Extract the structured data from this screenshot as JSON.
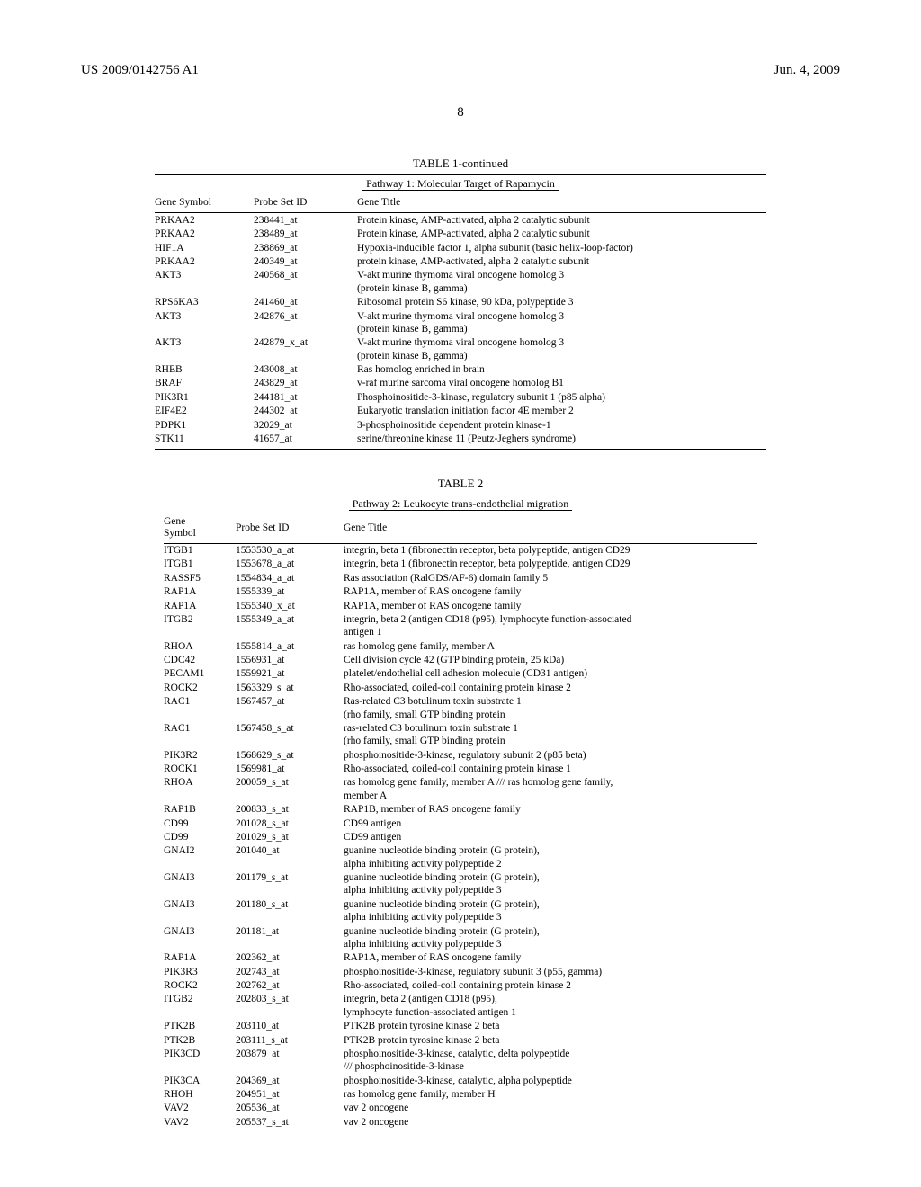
{
  "header": {
    "left": "US 2009/0142756 A1",
    "right": "Jun. 4, 2009"
  },
  "page_number": "8",
  "table1": {
    "caption": "TABLE 1-continued",
    "pathway": "Pathway 1: Molecular Target of Rapamycin",
    "columns": [
      "Gene Symbol",
      "Probe Set ID",
      "Gene Title"
    ],
    "rows": [
      [
        "PRKAA2",
        "238441_at",
        "Protein kinase, AMP-activated, alpha 2 catalytic subunit"
      ],
      [
        "PRKAA2",
        "238489_at",
        "Protein kinase, AMP-activated, alpha 2 catalytic subunit"
      ],
      [
        "HIF1A",
        "238869_at",
        "Hypoxia-inducible factor 1, alpha subunit (basic helix-loop-factor)"
      ],
      [
        "PRKAA2",
        "240349_at",
        "protein kinase, AMP-activated, alpha 2 catalytic subunit"
      ],
      [
        "AKT3",
        "240568_at",
        "V-akt murine thymoma viral oncogene homolog 3\n(protein kinase B, gamma)"
      ],
      [
        "RPS6KA3",
        "241460_at",
        "Ribosomal protein S6 kinase, 90 kDa, polypeptide 3"
      ],
      [
        "AKT3",
        "242876_at",
        "V-akt murine thymoma viral oncogene homolog 3\n(protein kinase B, gamma)"
      ],
      [
        "AKT3",
        "242879_x_at",
        "V-akt murine thymoma viral oncogene homolog 3\n(protein kinase B, gamma)"
      ],
      [
        "RHEB",
        "243008_at",
        "Ras homolog enriched in brain"
      ],
      [
        "BRAF",
        "243829_at",
        "v-raf murine sarcoma viral oncogene homolog B1"
      ],
      [
        "PIK3R1",
        "244181_at",
        "Phosphoinositide-3-kinase, regulatory subunit 1 (p85 alpha)"
      ],
      [
        "EIF4E2",
        "244302_at",
        "Eukaryotic translation initiation factor 4E member 2"
      ],
      [
        "PDPK1",
        "32029_at",
        "3-phosphoinositide dependent protein kinase-1"
      ],
      [
        "STK11",
        "41657_at",
        "serine/threonine kinase 11 (Peutz-Jeghers syndrome)"
      ]
    ]
  },
  "table2": {
    "caption": "TABLE 2",
    "pathway": "Pathway 2: Leukocyte trans-endothelial migration",
    "col0_line1": "Gene",
    "col0_line2": "Symbol",
    "col1": "Probe Set ID",
    "col2": "Gene Title",
    "rows": [
      [
        "ITGB1",
        "1553530_a_at",
        "integrin, beta 1 (fibronectin receptor, beta polypeptide, antigen CD29"
      ],
      [
        "ITGB1",
        "1553678_a_at",
        "integrin, beta 1 (fibronectin receptor, beta polypeptide, antigen CD29"
      ],
      [
        "RASSF5",
        "1554834_a_at",
        "Ras association (RalGDS/AF-6) domain family 5"
      ],
      [
        "RAP1A",
        "1555339_at",
        "RAP1A, member of RAS oncogene family"
      ],
      [
        "RAP1A",
        "1555340_x_at",
        "RAP1A, member of RAS oncogene family"
      ],
      [
        "ITGB2",
        "1555349_a_at",
        "integrin, beta 2 (antigen CD18 (p95), lymphocyte function-associated\nantigen 1"
      ],
      [
        "RHOA",
        "1555814_a_at",
        "ras homolog gene family, member A"
      ],
      [
        "CDC42",
        "1556931_at",
        "Cell division cycle 42 (GTP binding protein, 25 kDa)"
      ],
      [
        "PECAM1",
        "1559921_at",
        "platelet/endothelial cell adhesion molecule (CD31 antigen)"
      ],
      [
        "ROCK2",
        "1563329_s_at",
        "Rho-associated, coiled-coil containing protein kinase 2"
      ],
      [
        "RAC1",
        "1567457_at",
        "Ras-related C3 botulinum toxin substrate 1\n(rho family, small GTP binding protein"
      ],
      [
        "RAC1",
        "1567458_s_at",
        "ras-related C3 botulinum toxin substrate 1\n(rho family, small GTP binding protein"
      ],
      [
        "PIK3R2",
        "1568629_s_at",
        "phosphoinositide-3-kinase, regulatory subunit 2 (p85 beta)"
      ],
      [
        "ROCK1",
        "1569981_at",
        "Rho-associated, coiled-coil containing protein kinase 1"
      ],
      [
        "RHOA",
        "200059_s_at",
        "ras homolog gene family, member A /// ras homolog gene family,\nmember A"
      ],
      [
        "RAP1B",
        "200833_s_at",
        "RAP1B, member of RAS oncogene family"
      ],
      [
        "CD99",
        "201028_s_at",
        "CD99 antigen"
      ],
      [
        "CD99",
        "201029_s_at",
        "CD99 antigen"
      ],
      [
        "GNAI2",
        "201040_at",
        "guanine nucleotide binding protein (G protein),\nalpha inhibiting activity polypeptide 2"
      ],
      [
        "GNAI3",
        "201179_s_at",
        "guanine nucleotide binding protein (G protein),\nalpha inhibiting activity polypeptide 3"
      ],
      [
        "GNAI3",
        "201180_s_at",
        "guanine nucleotide binding protein (G protein),\nalpha inhibiting activity polypeptide 3"
      ],
      [
        "GNAI3",
        "201181_at",
        "guanine nucleotide binding protein (G protein),\nalpha inhibiting activity polypeptide 3"
      ],
      [
        "RAP1A",
        "202362_at",
        "RAP1A, member of RAS oncogene family"
      ],
      [
        "PIK3R3",
        "202743_at",
        "phosphoinositide-3-kinase, regulatory subunit 3 (p55, gamma)"
      ],
      [
        "ROCK2",
        "202762_at",
        "Rho-associated, coiled-coil containing protein kinase 2"
      ],
      [
        "ITGB2",
        "202803_s_at",
        "integrin, beta 2 (antigen CD18 (p95),\nlymphocyte function-associated antigen 1"
      ],
      [
        "PTK2B",
        "203110_at",
        "PTK2B protein tyrosine kinase 2 beta"
      ],
      [
        "PTK2B",
        "203111_s_at",
        "PTK2B protein tyrosine kinase 2 beta"
      ],
      [
        "PIK3CD",
        "203879_at",
        "phosphoinositide-3-kinase, catalytic, delta polypeptide\n/// phosphoinositide-3-kinase"
      ],
      [
        "PIK3CA",
        "204369_at",
        "phosphoinositide-3-kinase, catalytic, alpha polypeptide"
      ],
      [
        "RHOH",
        "204951_at",
        "ras homolog gene family, member H"
      ],
      [
        "VAV2",
        "205536_at",
        "vav 2 oncogene"
      ],
      [
        "VAV2",
        "205537_s_at",
        "vav 2 oncogene"
      ]
    ]
  }
}
